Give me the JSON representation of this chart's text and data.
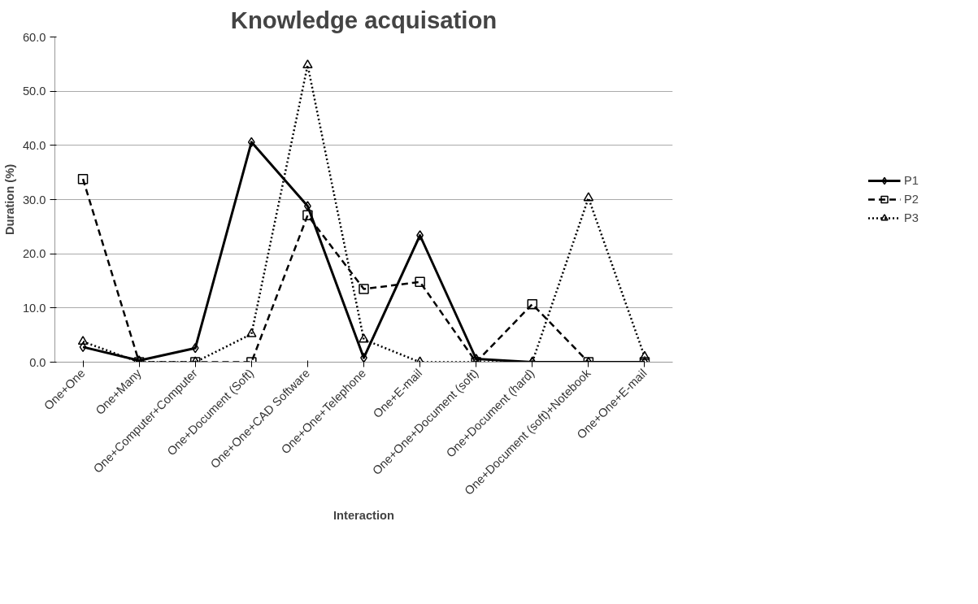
{
  "chart_data": {
    "type": "line",
    "title": "Knowledge acquisation",
    "xlabel": "Interaction",
    "ylabel": "Duration (%)",
    "categories": [
      "One+One",
      "One+Many",
      "One+Computer+Computer",
      "One+Document (Soft)",
      "One+One+CAD Software",
      "One+One+Telephone",
      "One+E-mail",
      "One+One+Document (soft)",
      "One+Document (hard)",
      "One+Document (soft)+Notebook",
      "One+One+E-mail"
    ],
    "series": [
      {
        "name": "P1",
        "color": "#000000",
        "marker": "diamond",
        "line_style": "solid",
        "values": [
          2.8,
          0.3,
          2.6,
          40.6,
          28.8,
          0.8,
          23.4,
          0.6,
          0,
          0,
          0
        ]
      },
      {
        "name": "P2",
        "color": "#000000",
        "marker": "square",
        "line_style": "dashed",
        "values": [
          33.8,
          0,
          0,
          0,
          27.1,
          13.5,
          14.8,
          0,
          10.7,
          0,
          0
        ]
      },
      {
        "name": "P3",
        "color": "#000000",
        "marker": "triangle",
        "line_style": "dotted",
        "values": [
          3.8,
          0,
          0,
          5.2,
          54.8,
          4.2,
          0,
          0,
          0,
          30.3,
          1.0
        ]
      }
    ],
    "ylim": [
      0,
      60
    ],
    "yticks": [
      {
        "value": 0,
        "label": "0.0"
      },
      {
        "value": 10,
        "label": "10.0"
      },
      {
        "value": 20,
        "label": "20.0"
      },
      {
        "value": 30,
        "label": "30.0"
      },
      {
        "value": 40,
        "label": "40.0"
      },
      {
        "value": 50,
        "label": "50.0"
      },
      {
        "value": 60,
        "label": "60.0"
      }
    ],
    "grid": "y",
    "legend": "right"
  }
}
